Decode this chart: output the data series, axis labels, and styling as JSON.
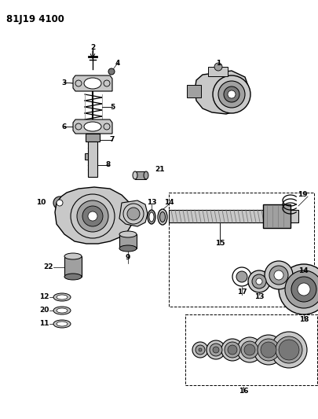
{
  "title": "81J19 4100",
  "bg_color": "#ffffff",
  "lc": "#000000",
  "gray1": "#c8c8c8",
  "gray2": "#a0a0a0",
  "gray3": "#787878",
  "gray4": "#505050",
  "figsize": [
    4.06,
    5.33
  ],
  "dpi": 100
}
